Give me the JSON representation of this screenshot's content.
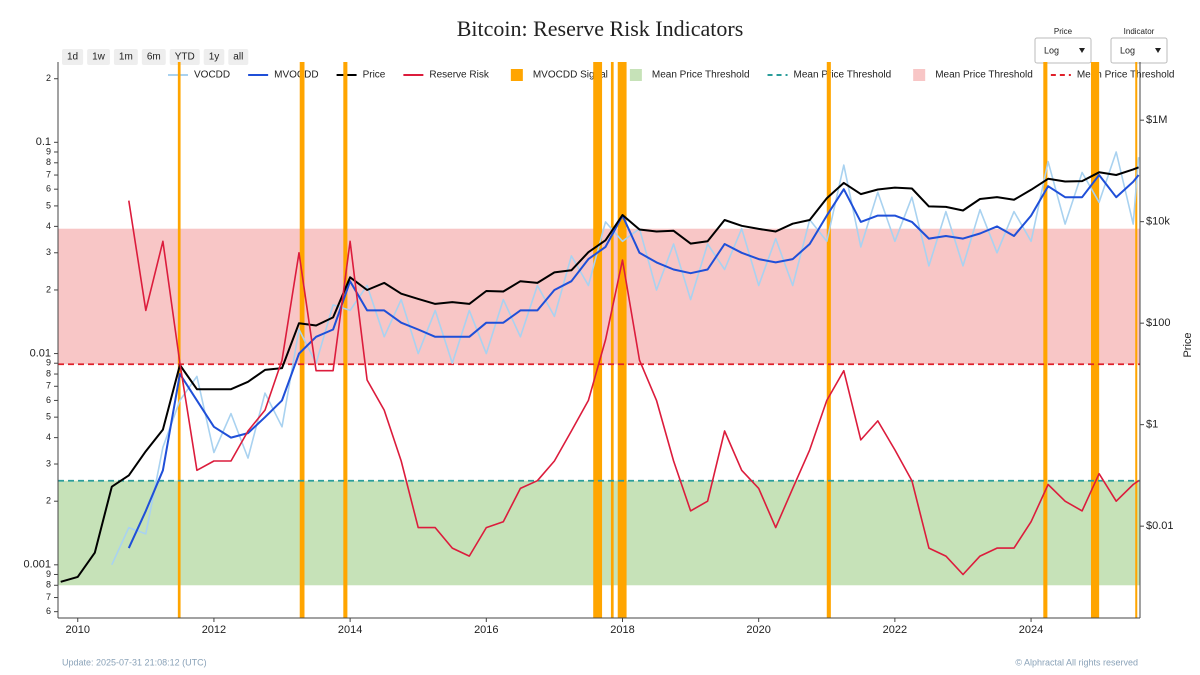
{
  "chart_data": {
    "type": "line",
    "title": "Bitcoin: Reserve Risk Indicators",
    "y2label": "Price",
    "ylog": true,
    "y2log": true,
    "xlim": [
      2009.71,
      2025.6
    ],
    "xticks": [
      2010,
      2012,
      2014,
      2016,
      2018,
      2020,
      2022,
      2024
    ],
    "ylim": [
      0.00056,
      0.24
    ],
    "yticks": [
      {
        "value": 0.0006,
        "label": "6"
      },
      {
        "value": 0.0007,
        "label": "7"
      },
      {
        "value": 0.0008,
        "label": "8"
      },
      {
        "value": 0.0009,
        "label": "9"
      },
      0.001,
      {
        "value": 0.002,
        "label": "2"
      },
      {
        "value": 0.003,
        "label": "3"
      },
      {
        "value": 0.004,
        "label": "4"
      },
      {
        "value": 0.005,
        "label": "5"
      },
      {
        "value": 0.006,
        "label": "6"
      },
      {
        "value": 0.007,
        "label": "7"
      },
      {
        "value": 0.008,
        "label": "8"
      },
      {
        "value": 0.009,
        "label": "9"
      },
      0.01,
      {
        "value": 0.02,
        "label": "2"
      },
      {
        "value": 0.03,
        "label": "3"
      },
      {
        "value": 0.04,
        "label": "4"
      },
      {
        "value": 0.05,
        "label": "5"
      },
      {
        "value": 0.06,
        "label": "6"
      },
      {
        "value": 0.07,
        "label": "7"
      },
      {
        "value": 0.08,
        "label": "8"
      },
      {
        "value": 0.09,
        "label": "9"
      },
      0.1,
      {
        "value": 0.2,
        "label": "2"
      }
    ],
    "y2lim": [
      0.000155,
      14000000
    ],
    "y2ticks": [
      {
        "value": 0.01,
        "label": "$0.01"
      },
      {
        "value": 1,
        "label": "$1"
      },
      {
        "value": 100,
        "label": "$100"
      },
      {
        "value": 10000,
        "label": "$10k"
      },
      {
        "value": 1000000,
        "label": "$1M"
      }
    ],
    "x": [
      2009.75,
      2010,
      2010.25,
      2010.5,
      2010.75,
      2011,
      2011.25,
      2011.5,
      2011.75,
      2012,
      2012.25,
      2012.5,
      2012.75,
      2013,
      2013.25,
      2013.5,
      2013.75,
      2014,
      2014.25,
      2014.5,
      2014.75,
      2015,
      2015.25,
      2015.5,
      2015.75,
      2016,
      2016.25,
      2016.5,
      2016.75,
      2017,
      2017.25,
      2017.5,
      2017.75,
      2018,
      2018.25,
      2018.5,
      2018.75,
      2019,
      2019.25,
      2019.5,
      2019.75,
      2020,
      2020.25,
      2020.5,
      2020.75,
      2021,
      2021.25,
      2021.5,
      2021.75,
      2022,
      2022.25,
      2022.5,
      2022.75,
      2023,
      2023.25,
      2023.5,
      2023.75,
      2024,
      2024.25,
      2024.5,
      2024.75,
      2025,
      2025.25,
      2025.5,
      2025.58
    ],
    "series": [
      {
        "name": "VOCDD",
        "color": "#a9d2f0",
        "width": 1.6,
        "values": [
          null,
          null,
          null,
          0.001,
          0.0015,
          0.0014,
          0.0036,
          0.006,
          0.0078,
          0.0034,
          0.0052,
          0.0032,
          0.0065,
          0.0045,
          0.013,
          0.009,
          0.017,
          0.016,
          0.021,
          0.012,
          0.018,
          0.01,
          0.016,
          0.009,
          0.016,
          0.01,
          0.018,
          0.012,
          0.021,
          0.015,
          0.029,
          0.021,
          0.042,
          0.034,
          0.039,
          0.02,
          0.033,
          0.018,
          0.033,
          0.025,
          0.039,
          0.021,
          0.035,
          0.021,
          0.043,
          0.034,
          0.078,
          0.032,
          0.058,
          0.034,
          0.055,
          0.026,
          0.047,
          0.026,
          0.048,
          0.03,
          0.047,
          0.034,
          0.081,
          0.041,
          0.072,
          0.052,
          0.09,
          0.041,
          0.085
        ]
      },
      {
        "name": "MVOCDD",
        "color": "#1f4fd8",
        "width": 2,
        "values": [
          null,
          null,
          null,
          null,
          0.0012,
          0.0018,
          0.0028,
          0.008,
          0.006,
          0.0045,
          0.004,
          0.0042,
          0.005,
          0.006,
          0.01,
          0.012,
          0.013,
          0.022,
          0.016,
          0.016,
          0.014,
          0.013,
          0.012,
          0.012,
          0.012,
          0.014,
          0.014,
          0.016,
          0.016,
          0.02,
          0.022,
          0.028,
          0.032,
          0.045,
          0.03,
          0.027,
          0.025,
          0.024,
          0.025,
          0.033,
          0.03,
          0.028,
          0.027,
          0.028,
          0.033,
          0.045,
          0.06,
          0.042,
          0.045,
          0.045,
          0.042,
          0.035,
          0.036,
          0.035,
          0.037,
          0.04,
          0.036,
          0.045,
          0.062,
          0.055,
          0.055,
          0.07,
          0.055,
          0.065,
          0.07
        ]
      },
      {
        "name": "Price",
        "color": "#000000",
        "width": 2,
        "axis": "y2",
        "values": [
          0.0008,
          0.001,
          0.003,
          0.06,
          0.1,
          0.3,
          0.8,
          15,
          5,
          5,
          5,
          7,
          12,
          13,
          100,
          90,
          130,
          800,
          450,
          620,
          380,
          300,
          240,
          260,
          240,
          430,
          420,
          670,
          620,
          1000,
          1100,
          2500,
          4300,
          13500,
          7000,
          6400,
          6600,
          3700,
          4100,
          10800,
          8300,
          7200,
          6400,
          9100,
          10800,
          29000,
          58000,
          35000,
          43000,
          47000,
          45000,
          20000,
          19500,
          16600,
          28000,
          30500,
          27000,
          42500,
          70000,
          62000,
          63000,
          94000,
          83000,
          107000,
          118000
        ]
      },
      {
        "name": "Reserve Risk",
        "color": "#dc1c3c",
        "width": 1.6,
        "values": [
          null,
          null,
          null,
          null,
          0.053,
          0.016,
          0.034,
          0.009,
          0.0028,
          0.0031,
          0.0031,
          0.0043,
          0.0054,
          0.0093,
          0.03,
          0.0083,
          0.0083,
          0.034,
          0.0075,
          0.0054,
          0.0031,
          0.0015,
          0.0015,
          0.0012,
          0.0011,
          0.0015,
          0.0016,
          0.0023,
          0.0025,
          0.0031,
          0.0043,
          0.006,
          0.0116,
          0.0277,
          0.0093,
          0.006,
          0.0031,
          0.0018,
          0.002,
          0.0043,
          0.0028,
          0.0023,
          0.0015,
          0.0023,
          0.0035,
          0.006,
          0.0083,
          0.0039,
          0.0048,
          0.0035,
          0.0025,
          0.0012,
          0.0011,
          0.0009,
          0.0011,
          0.0012,
          0.0012,
          0.0016,
          0.0024,
          0.002,
          0.0018,
          0.0027,
          0.002,
          0.0024,
          0.0025
        ]
      }
    ],
    "signal": {
      "name": "MVOCDD Signal",
      "color": "#ffa500",
      "periods": [
        [
          2011.47,
          2011.51
        ],
        [
          2013.26,
          2013.33
        ],
        [
          2013.9,
          2013.96
        ],
        [
          2017.57,
          2017.7
        ],
        [
          2017.83,
          2017.87
        ],
        [
          2017.93,
          2018.06
        ],
        [
          2021.0,
          2021.06
        ],
        [
          2024.18,
          2024.24
        ],
        [
          2024.88,
          2025.0
        ],
        [
          2025.53,
          2025.56
        ]
      ]
    },
    "thresholds": [
      {
        "name": "Mean Price Threshold",
        "kind": "band",
        "range": [
          0.0008,
          0.0025
        ],
        "color": "#c6e2b8"
      },
      {
        "name": "Mean Price Threshold",
        "kind": "line",
        "value": 0.0025,
        "color": "#2a9d9a"
      },
      {
        "name": "Mean Price Threshold",
        "kind": "band",
        "range": [
          0.0089,
          0.039
        ],
        "color": "#f8c6c6"
      },
      {
        "name": "Mean Price Threshold",
        "kind": "line",
        "value": 0.0089,
        "color": "#e0202a"
      }
    ]
  },
  "controls": {
    "ranges": [
      "1d",
      "1w",
      "1m",
      "6m",
      "YTD",
      "1y",
      "all"
    ],
    "dropdowns": [
      {
        "label": "Price",
        "value": "Log"
      },
      {
        "label": "Indicator",
        "value": "Log"
      }
    ]
  },
  "footer": {
    "update": "Update: 2025-07-31 21:08:12 (UTC)",
    "copyright": "© Alphractal All rights reserved"
  }
}
